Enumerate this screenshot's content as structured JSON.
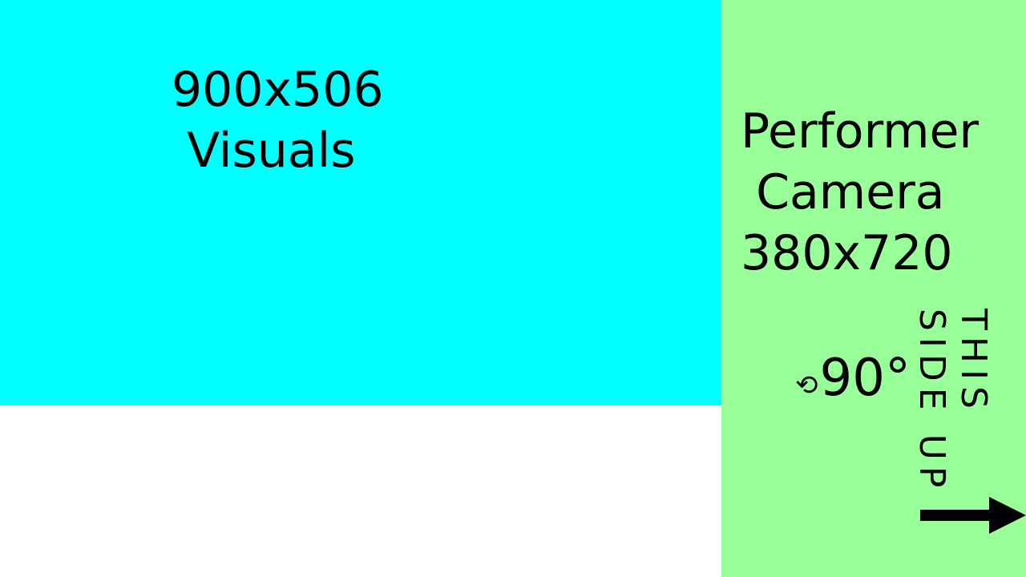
{
  "visuals_panel": {
    "label": "900x506\n Visuals",
    "color": "#00ffff"
  },
  "camera_panel": {
    "label": "Performer\n Camera\n380x720",
    "color": "#99ff99",
    "rotate_icon": "⟲",
    "rotate_text": "90°",
    "orientation_text": "THIS\nSIDE UP",
    "arrow_icon": "right-arrow-icon"
  },
  "background_color": "#ffffff"
}
